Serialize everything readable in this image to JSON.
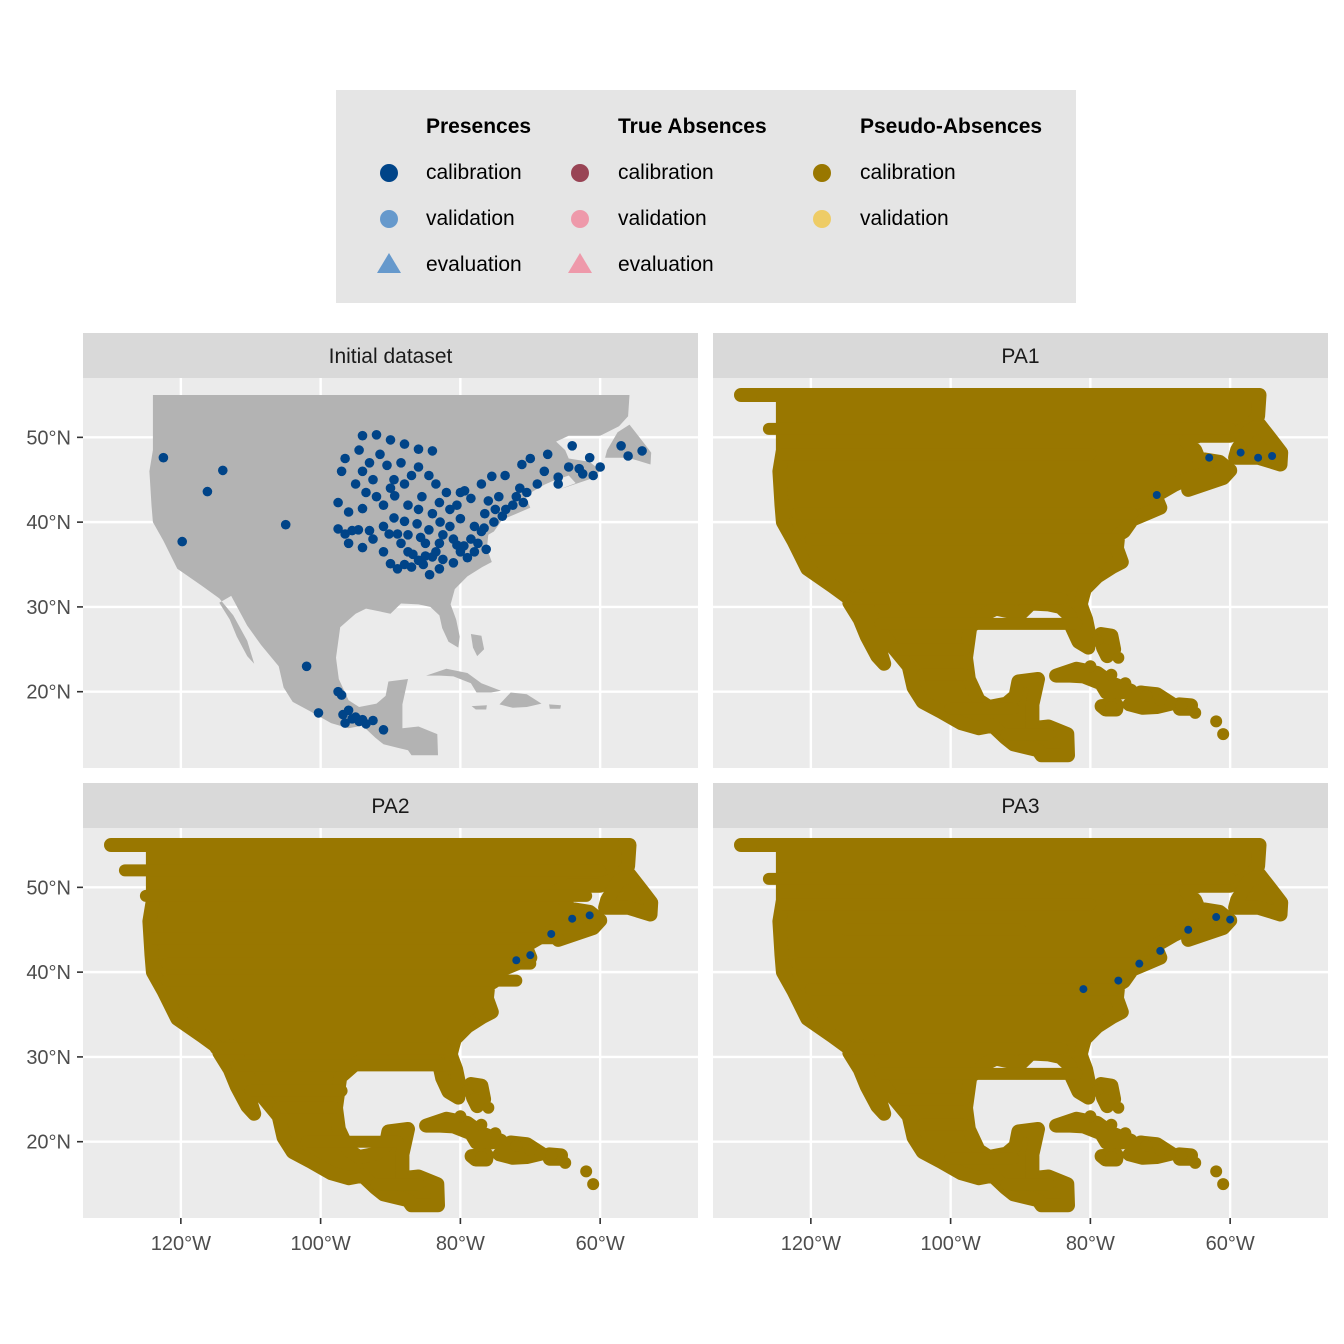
{
  "legend": {
    "groups": [
      {
        "title": "Presences",
        "items": [
          {
            "label": "calibration",
            "shape": "circle",
            "color": "#004488"
          },
          {
            "label": "validation",
            "shape": "circle",
            "color": "#6699CC"
          },
          {
            "label": "evaluation",
            "shape": "triangle",
            "color": "#6699CC"
          }
        ]
      },
      {
        "title": "True Absences",
        "items": [
          {
            "label": "calibration",
            "shape": "circle",
            "color": "#994455"
          },
          {
            "label": "validation",
            "shape": "circle",
            "color": "#EE99AA"
          },
          {
            "label": "evaluation",
            "shape": "triangle",
            "color": "#EE99AA"
          }
        ]
      },
      {
        "title": "Pseudo-Absences",
        "items": [
          {
            "label": "calibration",
            "shape": "circle",
            "color": "#997700"
          },
          {
            "label": "validation",
            "shape": "circle",
            "color": "#EECC66"
          }
        ]
      }
    ]
  },
  "chart_data": {
    "type": "scatter",
    "facets": [
      "Initial dataset",
      "PA1",
      "PA2",
      "PA3"
    ],
    "x_ticks": [
      -120,
      -100,
      -80,
      -60
    ],
    "x_tick_labels": [
      "120°W",
      "100°W",
      "80°W",
      "60°W"
    ],
    "y_ticks": [
      20,
      30,
      40,
      50
    ],
    "y_tick_labels": [
      "20°N",
      "30°N",
      "40°N",
      "50°N"
    ],
    "xlim": [
      -134,
      -46
    ],
    "ylim": [
      11,
      57
    ],
    "grid": true,
    "legend_position": "top",
    "colors": {
      "land": "#b3b3b3",
      "panel": "#ebebeb",
      "strip": "#d9d9d9",
      "presence_calibration": "#004488",
      "pseudo_absence_calibration": "#997700"
    },
    "presence_points": [
      [
        -122.5,
        47.6
      ],
      [
        -119.8,
        37.7
      ],
      [
        -114.0,
        46.1
      ],
      [
        -116.2,
        43.6
      ],
      [
        -105.0,
        39.7
      ],
      [
        -102.0,
        23.0
      ],
      [
        -100.3,
        17.5
      ],
      [
        -97.5,
        20.0
      ],
      [
        -97.0,
        19.6
      ],
      [
        -96.8,
        17.3
      ],
      [
        -95.5,
        16.8
      ],
      [
        -94.0,
        16.7
      ],
      [
        -93.5,
        16.2
      ],
      [
        -92.5,
        16.6
      ],
      [
        -91.0,
        15.5
      ],
      [
        -96.0,
        17.8
      ],
      [
        -95.0,
        17.0
      ],
      [
        -94.5,
        16.5
      ],
      [
        -96.5,
        16.3
      ],
      [
        -94.0,
        50.2
      ],
      [
        -92.0,
        50.3
      ],
      [
        -90.0,
        49.7
      ],
      [
        -88.0,
        49.2
      ],
      [
        -86.0,
        48.6
      ],
      [
        -84.0,
        48.4
      ],
      [
        -90.5,
        46.7
      ],
      [
        -89.5,
        45.0
      ],
      [
        -88.0,
        44.5
      ],
      [
        -92.5,
        45.0
      ],
      [
        -93.0,
        47.0
      ],
      [
        -91.5,
        48.0
      ],
      [
        -94.0,
        46.0
      ],
      [
        -87.5,
        42.0
      ],
      [
        -85.5,
        43.0
      ],
      [
        -84.5,
        45.5
      ],
      [
        -83.0,
        42.3
      ],
      [
        -81.5,
        41.5
      ],
      [
        -80.0,
        43.5
      ],
      [
        -79.4,
        43.7
      ],
      [
        -77.0,
        44.5
      ],
      [
        -75.5,
        45.4
      ],
      [
        -73.6,
        45.5
      ],
      [
        -71.2,
        46.8
      ],
      [
        -70.0,
        47.5
      ],
      [
        -68.0,
        46.0
      ],
      [
        -66.0,
        45.3
      ],
      [
        -64.5,
        46.5
      ],
      [
        -63.0,
        46.3
      ],
      [
        -61.0,
        45.5
      ],
      [
        -66.0,
        44.5
      ],
      [
        -70.5,
        43.5
      ],
      [
        -72.5,
        42.0
      ],
      [
        -71.0,
        42.3
      ],
      [
        -74.0,
        40.7
      ],
      [
        -75.2,
        40.0
      ],
      [
        -76.6,
        39.3
      ],
      [
        -77.0,
        38.9
      ],
      [
        -77.5,
        37.5
      ],
      [
        -78.5,
        38.0
      ],
      [
        -80.0,
        40.4
      ],
      [
        -81.5,
        39.5
      ],
      [
        -82.9,
        40.0
      ],
      [
        -84.5,
        39.1
      ],
      [
        -86.2,
        39.8
      ],
      [
        -85.7,
        38.2
      ],
      [
        -87.5,
        38.5
      ],
      [
        -89.0,
        38.6
      ],
      [
        -90.2,
        38.6
      ],
      [
        -93.0,
        39.0
      ],
      [
        -94.6,
        39.1
      ],
      [
        -95.5,
        39.0
      ],
      [
        -96.5,
        38.6
      ],
      [
        -97.5,
        42.3
      ],
      [
        -96.0,
        41.2
      ],
      [
        -94.0,
        41.6
      ],
      [
        -92.0,
        43.0
      ],
      [
        -91.0,
        42.0
      ],
      [
        -89.4,
        43.1
      ],
      [
        -88.0,
        40.1
      ],
      [
        -86.8,
        36.2
      ],
      [
        -85.3,
        35.0
      ],
      [
        -84.4,
        33.8
      ],
      [
        -83.0,
        34.5
      ],
      [
        -81.0,
        35.2
      ],
      [
        -79.0,
        35.8
      ],
      [
        -78.0,
        36.5
      ],
      [
        -76.3,
        36.8
      ],
      [
        -82.5,
        35.6
      ],
      [
        -88.0,
        35.0
      ],
      [
        -90.0,
        35.1
      ],
      [
        -91.0,
        36.5
      ],
      [
        -89.0,
        34.5
      ],
      [
        -87.0,
        34.7
      ],
      [
        -86.0,
        35.5
      ],
      [
        -84.0,
        35.9
      ],
      [
        -83.5,
        36.5
      ],
      [
        -80.5,
        37.3
      ],
      [
        -79.5,
        37.2
      ],
      [
        -85.0,
        36.0
      ],
      [
        -64.0,
        49.0
      ],
      [
        -61.5,
        47.6
      ],
      [
        -57.0,
        49.0
      ],
      [
        -54.0,
        48.4
      ],
      [
        -56.0,
        47.8
      ],
      [
        -67.5,
        48.0
      ],
      [
        -60.0,
        46.5
      ],
      [
        -62.5,
        45.7
      ],
      [
        -69.0,
        44.5
      ],
      [
        -71.5,
        44.0
      ],
      [
        -74.5,
        43.0
      ],
      [
        -76.0,
        42.5
      ],
      [
        -78.5,
        42.8
      ],
      [
        -80.5,
        42.0
      ],
      [
        -82.0,
        43.5
      ],
      [
        -83.5,
        44.5
      ],
      [
        -86.0,
        46.5
      ],
      [
        -88.5,
        47.0
      ],
      [
        -87.0,
        45.5
      ],
      [
        -90.0,
        44.0
      ],
      [
        -93.5,
        43.5
      ],
      [
        -95.0,
        44.5
      ],
      [
        -97.0,
        46.0
      ],
      [
        -96.5,
        47.5
      ],
      [
        -94.5,
        48.5
      ],
      [
        -97.5,
        39.2
      ],
      [
        -96.0,
        37.5
      ],
      [
        -94.0,
        37.0
      ],
      [
        -92.5,
        38.0
      ],
      [
        -91.0,
        39.5
      ],
      [
        -89.5,
        40.5
      ],
      [
        -86.0,
        41.5
      ],
      [
        -84.0,
        41.0
      ],
      [
        -82.5,
        38.5
      ],
      [
        -81.0,
        38.0
      ],
      [
        -78.0,
        39.5
      ],
      [
        -76.5,
        41.0
      ],
      [
        -75.0,
        41.5
      ],
      [
        -73.5,
        41.5
      ],
      [
        -72.0,
        43.0
      ],
      [
        -87.5,
        36.5
      ],
      [
        -88.5,
        37.5
      ],
      [
        -85.0,
        37.5
      ],
      [
        -83.0,
        37.5
      ],
      [
        -80.0,
        36.5
      ]
    ]
  }
}
